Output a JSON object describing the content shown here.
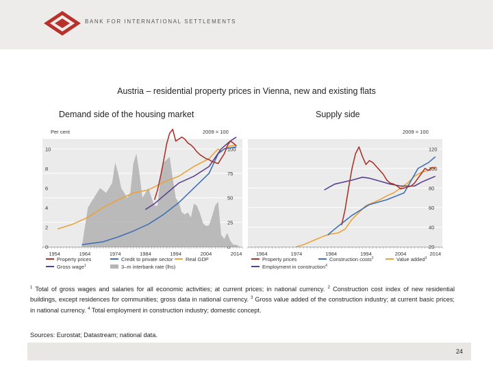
{
  "header": {
    "org_name": "BANK FOR INTERNATIONAL SETTLEMENTS"
  },
  "title": "Austria – residential property prices in Vienna, new and existing flats",
  "panel_titles": {
    "left": "Demand side of the housing market",
    "right": "Supply side"
  },
  "footnotes": {
    "n1": "1",
    "t1": " Total of gross wages and salaries for all economic activities; at current prices; in national currency.",
    "n2": "2",
    "t2": " Construction cost index of new residential buildings, except residences for communities; gross data in national currency.",
    "n3": "3",
    "t3": " Gross value added of the construction industry; at current basic prices; in national currency.",
    "n4": "4",
    "t4": " Total employment in construction industry; domestic concept."
  },
  "sources": "Sources: Eurostat; Datastream; national data.",
  "page_number": "24",
  "colors": {
    "property": "#a8342a",
    "credit": "#3f6fb4",
    "gdp": "#e8a33c",
    "wage": "#5a3f8f",
    "employment": "#5a3f8f",
    "rate": "#b5b5b5",
    "plot_bg": "#ebebeb",
    "logo": "#b8312b"
  },
  "chart_data": [
    {
      "type": "line",
      "panel": "Demand side of the housing market",
      "left_axis_label": "Per cent",
      "right_axis_label": "2009 = 100",
      "left_ylim": [
        0,
        11
      ],
      "right_ylim": [
        0,
        110
      ],
      "left_ticks": [
        0,
        2,
        4,
        6,
        8,
        10
      ],
      "left_tick_labels": [
        "0",
        "2",
        "4",
        "6",
        "8",
        "10"
      ],
      "right_ticks": [
        0,
        25,
        50,
        75,
        100
      ],
      "right_tick_labels": [
        "0",
        "25",
        "50",
        "75",
        "100"
      ],
      "xlim": [
        1950,
        2016
      ],
      "x_ticks": [
        1954,
        1964,
        1974,
        1984,
        1994,
        2004,
        2014
      ],
      "x_tick_labels": [
        "1954",
        "1964",
        "1974",
        "1984",
        "1994",
        "2004",
        "2014"
      ],
      "legend": [
        {
          "key": "property",
          "label": "Property prices",
          "sup": ""
        },
        {
          "key": "credit",
          "label": "Credit to private sector",
          "sup": ""
        },
        {
          "key": "gdp",
          "label": "Real GDP",
          "sup": ""
        },
        {
          "key": "wage",
          "label": "Gross wage",
          "sup": "1"
        },
        {
          "key": "rate",
          "label": "3–m interbank rate (lhs)",
          "sup": ""
        }
      ],
      "series": [
        {
          "key": "rate",
          "kind": "area",
          "axis": "left",
          "x": [
            1963,
            1965,
            1967,
            1969,
            1971,
            1973,
            1974,
            1975,
            1976,
            1977,
            1978,
            1979,
            1980,
            1981,
            1982,
            1983,
            1984,
            1985,
            1986,
            1987,
            1988,
            1989,
            1990,
            1991,
            1992,
            1993,
            1994,
            1995,
            1996,
            1997,
            1998,
            1999,
            2000,
            2001,
            2002,
            2003,
            2004,
            2005,
            2006,
            2007,
            2008,
            2009,
            2010,
            2011,
            2012,
            2013,
            2014,
            2015
          ],
          "y": [
            0,
            4,
            5,
            6,
            5.5,
            6.5,
            8.6,
            7.5,
            6,
            5.5,
            5,
            5.5,
            8.5,
            9.5,
            7.5,
            5,
            5.5,
            6,
            5,
            4.2,
            4.2,
            7.2,
            8.6,
            8.9,
            9.2,
            7,
            5,
            4.5,
            3.5,
            3.3,
            3.5,
            3,
            4.4,
            4.2,
            3.4,
            2.4,
            2.1,
            2.2,
            3.1,
            4.2,
            4.6,
            1.2,
            0.8,
            1.4,
            0.6,
            0.2,
            0.2,
            0
          ]
        },
        {
          "key": "gdp",
          "kind": "line",
          "axis": "right",
          "x": [
            1955,
            1960,
            1965,
            1970,
            1975,
            1980,
            1985,
            1990,
            1995,
            2000,
            2005,
            2008,
            2009,
            2010,
            2012,
            2014
          ],
          "y": [
            18,
            23,
            30,
            40,
            48,
            55,
            58,
            66,
            72,
            82,
            90,
            100,
            97,
            100,
            103,
            104
          ]
        },
        {
          "key": "credit",
          "kind": "line",
          "axis": "right",
          "x": [
            1963,
            1970,
            1975,
            1980,
            1985,
            1990,
            1995,
            2000,
            2005,
            2008,
            2010,
            2012,
            2014
          ],
          "y": [
            2,
            5,
            10,
            16,
            23,
            33,
            45,
            60,
            75,
            95,
            100,
            101,
            102
          ]
        },
        {
          "key": "wage",
          "kind": "line",
          "axis": "right",
          "x": [
            1984,
            1987,
            1990,
            1995,
            2000,
            2005,
            2009,
            2012,
            2014
          ],
          "y": [
            38,
            44,
            52,
            65,
            72,
            82,
            100,
            108,
            112
          ]
        },
        {
          "key": "property",
          "kind": "line",
          "axis": "right",
          "x": [
            1987,
            1988,
            1989,
            1990,
            1991,
            1992,
            1993,
            1994,
            1995,
            1996,
            1997,
            1998,
            1999,
            2000,
            2001,
            2002,
            2003,
            2004,
            2005,
            2006,
            2007,
            2008,
            2009,
            2010,
            2011,
            2012,
            2013,
            2014
          ],
          "y": [
            48,
            58,
            72,
            88,
            105,
            116,
            120,
            108,
            110,
            112,
            110,
            106,
            104,
            101,
            97,
            94,
            92,
            90,
            89,
            87,
            86,
            85,
            90,
            95,
            103,
            108,
            106,
            103
          ]
        }
      ]
    },
    {
      "type": "line",
      "panel": "Supply side",
      "right_axis_label": "2009 = 100",
      "right_ylim": [
        20,
        130
      ],
      "right_ticks": [
        20,
        40,
        60,
        80,
        100,
        120
      ],
      "right_tick_labels": [
        "20",
        "40",
        "60",
        "80",
        "100",
        "120"
      ],
      "xlim": [
        1960,
        2016
      ],
      "x_ticks": [
        1964,
        1974,
        1984,
        1994,
        2004,
        2014
      ],
      "x_tick_labels": [
        "1964",
        "1974",
        "1984",
        "1994",
        "2004",
        "2014"
      ],
      "legend": [
        {
          "key": "property",
          "label": "Property prices",
          "sup": ""
        },
        {
          "key": "credit",
          "label": "Construction costs",
          "sup": "2"
        },
        {
          "key": "gdp",
          "label": "Value added",
          "sup": "3"
        },
        {
          "key": "employment",
          "label": "Employment in construction",
          "sup": "4"
        }
      ],
      "series": [
        {
          "key": "gdp",
          "kind": "line",
          "axis": "right",
          "x": [
            1974,
            1976,
            1978,
            1980,
            1982,
            1984,
            1986,
            1988,
            1990,
            1992,
            1994,
            1996,
            1998,
            2000,
            2002,
            2004,
            2006,
            2008,
            2010,
            2012,
            2014
          ],
          "y": [
            20,
            22,
            25,
            28,
            31,
            33,
            34,
            38,
            48,
            55,
            62,
            65,
            68,
            72,
            75,
            80,
            85,
            92,
            96,
            98,
            102
          ]
        },
        {
          "key": "credit",
          "kind": "line",
          "axis": "right",
          "x": [
            1983,
            1985,
            1990,
            1995,
            2000,
            2005,
            2009,
            2012,
            2014
          ],
          "y": [
            32,
            38,
            52,
            63,
            68,
            75,
            100,
            106,
            112
          ]
        },
        {
          "key": "employment",
          "kind": "line",
          "axis": "right",
          "x": [
            1982,
            1985,
            1990,
            1993,
            1995,
            1998,
            2001,
            2004,
            2008,
            2010,
            2012,
            2014
          ],
          "y": [
            78,
            84,
            88,
            91,
            90,
            87,
            84,
            82,
            82,
            86,
            89,
            92
          ]
        },
        {
          "key": "property",
          "kind": "line",
          "axis": "right",
          "x": [
            1987,
            1988,
            1989,
            1990,
            1991,
            1992,
            1993,
            1994,
            1995,
            1996,
            1997,
            1998,
            1999,
            2000,
            2001,
            2002,
            2003,
            2004,
            2005,
            2006,
            2007,
            2008,
            2009,
            2010,
            2011,
            2012,
            2013,
            2014
          ],
          "y": [
            42,
            58,
            80,
            100,
            115,
            122,
            112,
            104,
            108,
            106,
            102,
            98,
            94,
            88,
            85,
            84,
            82,
            79,
            80,
            81,
            82,
            85,
            90,
            95,
            100,
            98,
            101,
            100
          ]
        }
      ]
    }
  ]
}
